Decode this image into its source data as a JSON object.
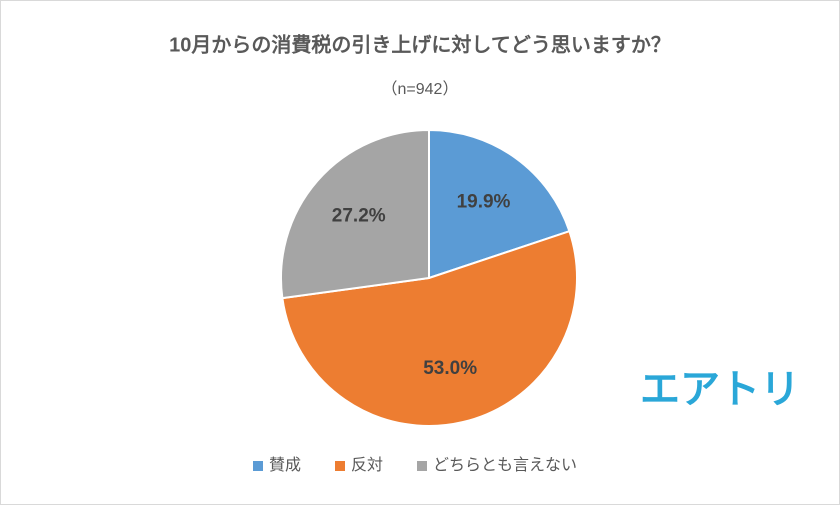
{
  "chart_data": {
    "type": "pie",
    "title": "10月からの消費税の引き上げに対してどう思いますか？",
    "subtitle": "（n=942）",
    "categories": [
      "賛成",
      "反対",
      "どちらとも言えない"
    ],
    "values": [
      19.9,
      53.0,
      27.2
    ],
    "value_labels": [
      "19.9%",
      "53.0%",
      "27.2%"
    ],
    "colors": [
      "#5b9bd5",
      "#ed7d31",
      "#a5a5a5"
    ],
    "legend": "bottom",
    "watermark": "エアトリ"
  }
}
